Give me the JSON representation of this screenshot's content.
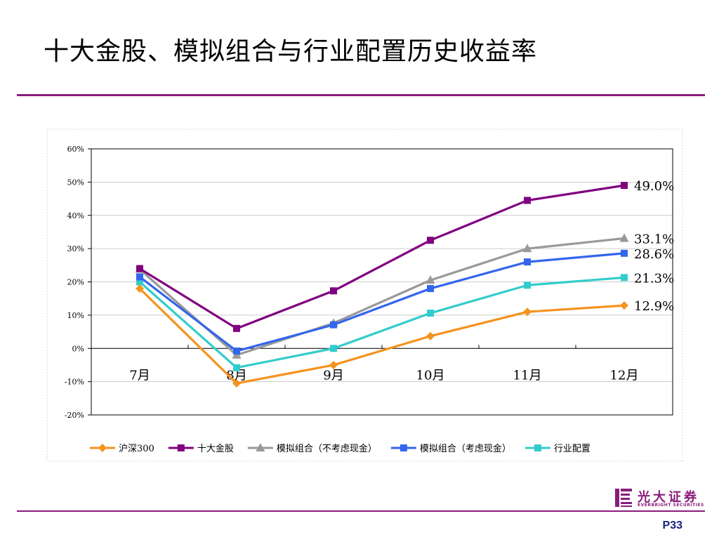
{
  "slide": {
    "title": "十大金股、模拟组合与行业配置历史收益率",
    "page_number": "P33",
    "logo_cn": "光大证券",
    "logo_en": "EVERBRIGHT SECURITIES",
    "brand_color": "#8a1c7c"
  },
  "chart_data": {
    "type": "line",
    "categories": [
      "7月",
      "8月",
      "9月",
      "10月",
      "11月",
      "12月"
    ],
    "ylim": [
      -20,
      60
    ],
    "yticks": [
      -20,
      -10,
      0,
      10,
      20,
      30,
      40,
      50,
      60
    ],
    "ytick_labels": [
      "-20%",
      "-10%",
      "0%",
      "10%",
      "20%",
      "30%",
      "40%",
      "50%",
      "60%"
    ],
    "grid": true,
    "legend_position": "bottom",
    "series": [
      {
        "name": "沪深300",
        "color": "#f4931e",
        "marker": "diamond",
        "values": [
          18.0,
          -10.5,
          -5.0,
          3.7,
          11.0,
          12.9
        ],
        "end_label": "12.9%"
      },
      {
        "name": "十大金股",
        "color": "#800080",
        "marker": "square",
        "values": [
          24.0,
          6.0,
          17.3,
          32.5,
          44.5,
          49.0
        ],
        "end_label": "49.0%"
      },
      {
        "name": "模拟组合（不考虑现金）",
        "color": "#999999",
        "marker": "triangle",
        "values": [
          23.8,
          -2.0,
          7.6,
          20.5,
          30.0,
          33.1
        ],
        "end_label": "33.1%"
      },
      {
        "name": "模拟组合（考虑现金）",
        "color": "#3366ee",
        "marker": "square",
        "values": [
          21.5,
          -0.8,
          7.1,
          18.0,
          26.0,
          28.6
        ],
        "end_label": "28.6%"
      },
      {
        "name": "行业配置",
        "color": "#33cccc",
        "marker": "square",
        "values": [
          20.0,
          -5.8,
          0.0,
          10.6,
          19.0,
          21.3
        ],
        "end_label": "21.3%"
      }
    ]
  }
}
